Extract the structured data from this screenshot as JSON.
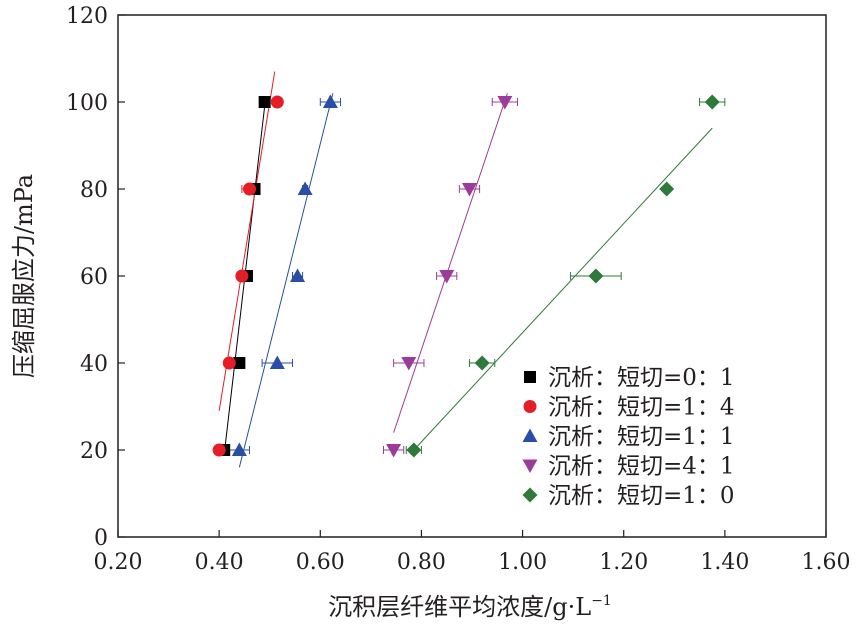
{
  "chart_data": {
    "type": "scatter",
    "xlabel": "沉积层纤维平均浓度/g·L",
    "xlabel_sup": "−1",
    "ylabel": "压缩屈服应力/mPa",
    "xlim": [
      0.2,
      1.6
    ],
    "ylim": [
      0,
      120
    ],
    "xticks": [
      "0.20",
      "0.40",
      "0.60",
      "0.80",
      "1.00",
      "1.20",
      "1.40",
      "1.60"
    ],
    "yticks": [
      "0",
      "20",
      "40",
      "60",
      "80",
      "100",
      "120"
    ],
    "legend_position": "bottom-right",
    "grid": false,
    "series": [
      {
        "name": "沉析：短切=0：1",
        "color": "#000000",
        "marker": "square",
        "points": [
          {
            "x": 0.41,
            "y": 20,
            "xerr": 0.008
          },
          {
            "x": 0.44,
            "y": 40,
            "xerr": 0.008
          },
          {
            "x": 0.455,
            "y": 60,
            "xerr": 0.008
          },
          {
            "x": 0.47,
            "y": 80,
            "xerr": 0.008
          },
          {
            "x": 0.49,
            "y": 100,
            "xerr": 0.008
          }
        ],
        "fit": [
          [
            0.41,
            19
          ],
          [
            0.49,
            99
          ]
        ]
      },
      {
        "name": "沉析：短切=1：4",
        "color": "#e41e26",
        "marker": "circle",
        "points": [
          {
            "x": 0.4,
            "y": 20,
            "xerr": 0.008
          },
          {
            "x": 0.42,
            "y": 40,
            "xerr": 0.008
          },
          {
            "x": 0.445,
            "y": 60,
            "xerr": 0.008
          },
          {
            "x": 0.46,
            "y": 80,
            "xerr": 0.015
          },
          {
            "x": 0.515,
            "y": 100,
            "xerr": 0.008
          }
        ],
        "fit": [
          [
            0.4,
            29
          ],
          [
            0.51,
            107
          ]
        ]
      },
      {
        "name": "沉析：短切=1：1",
        "color": "#2a4ea5",
        "marker": "triangle-up",
        "points": [
          {
            "x": 0.44,
            "y": 20,
            "xerr": 0.02
          },
          {
            "x": 0.515,
            "y": 40,
            "xerr": 0.03
          },
          {
            "x": 0.555,
            "y": 60,
            "xerr": 0.01
          },
          {
            "x": 0.57,
            "y": 80,
            "xerr": 0.005
          },
          {
            "x": 0.62,
            "y": 100,
            "xerr": 0.02
          }
        ],
        "fit": [
          [
            0.44,
            16
          ],
          [
            0.625,
            102
          ]
        ]
      },
      {
        "name": "沉析：短切=4：1",
        "color": "#9c3c9a",
        "marker": "triangle-down",
        "points": [
          {
            "x": 0.745,
            "y": 20,
            "xerr": 0.02
          },
          {
            "x": 0.775,
            "y": 40,
            "xerr": 0.03
          },
          {
            "x": 0.85,
            "y": 60,
            "xerr": 0.02
          },
          {
            "x": 0.895,
            "y": 80,
            "xerr": 0.02
          },
          {
            "x": 0.965,
            "y": 100,
            "xerr": 0.025
          }
        ],
        "fit": [
          [
            0.745,
            24
          ],
          [
            0.97,
            102
          ]
        ]
      },
      {
        "name": "沉析：短切=1：0",
        "color": "#2f7a3a",
        "marker": "diamond",
        "points": [
          {
            "x": 0.785,
            "y": 20,
            "xerr": 0.015
          },
          {
            "x": 0.92,
            "y": 40,
            "xerr": 0.025
          },
          {
            "x": 1.145,
            "y": 60,
            "xerr": 0.05
          },
          {
            "x": 1.285,
            "y": 80,
            "xerr": 0.005
          },
          {
            "x": 1.375,
            "y": 100,
            "xerr": 0.025
          }
        ],
        "fit": [
          [
            0.785,
            20
          ],
          [
            1.375,
            94
          ]
        ]
      }
    ]
  }
}
